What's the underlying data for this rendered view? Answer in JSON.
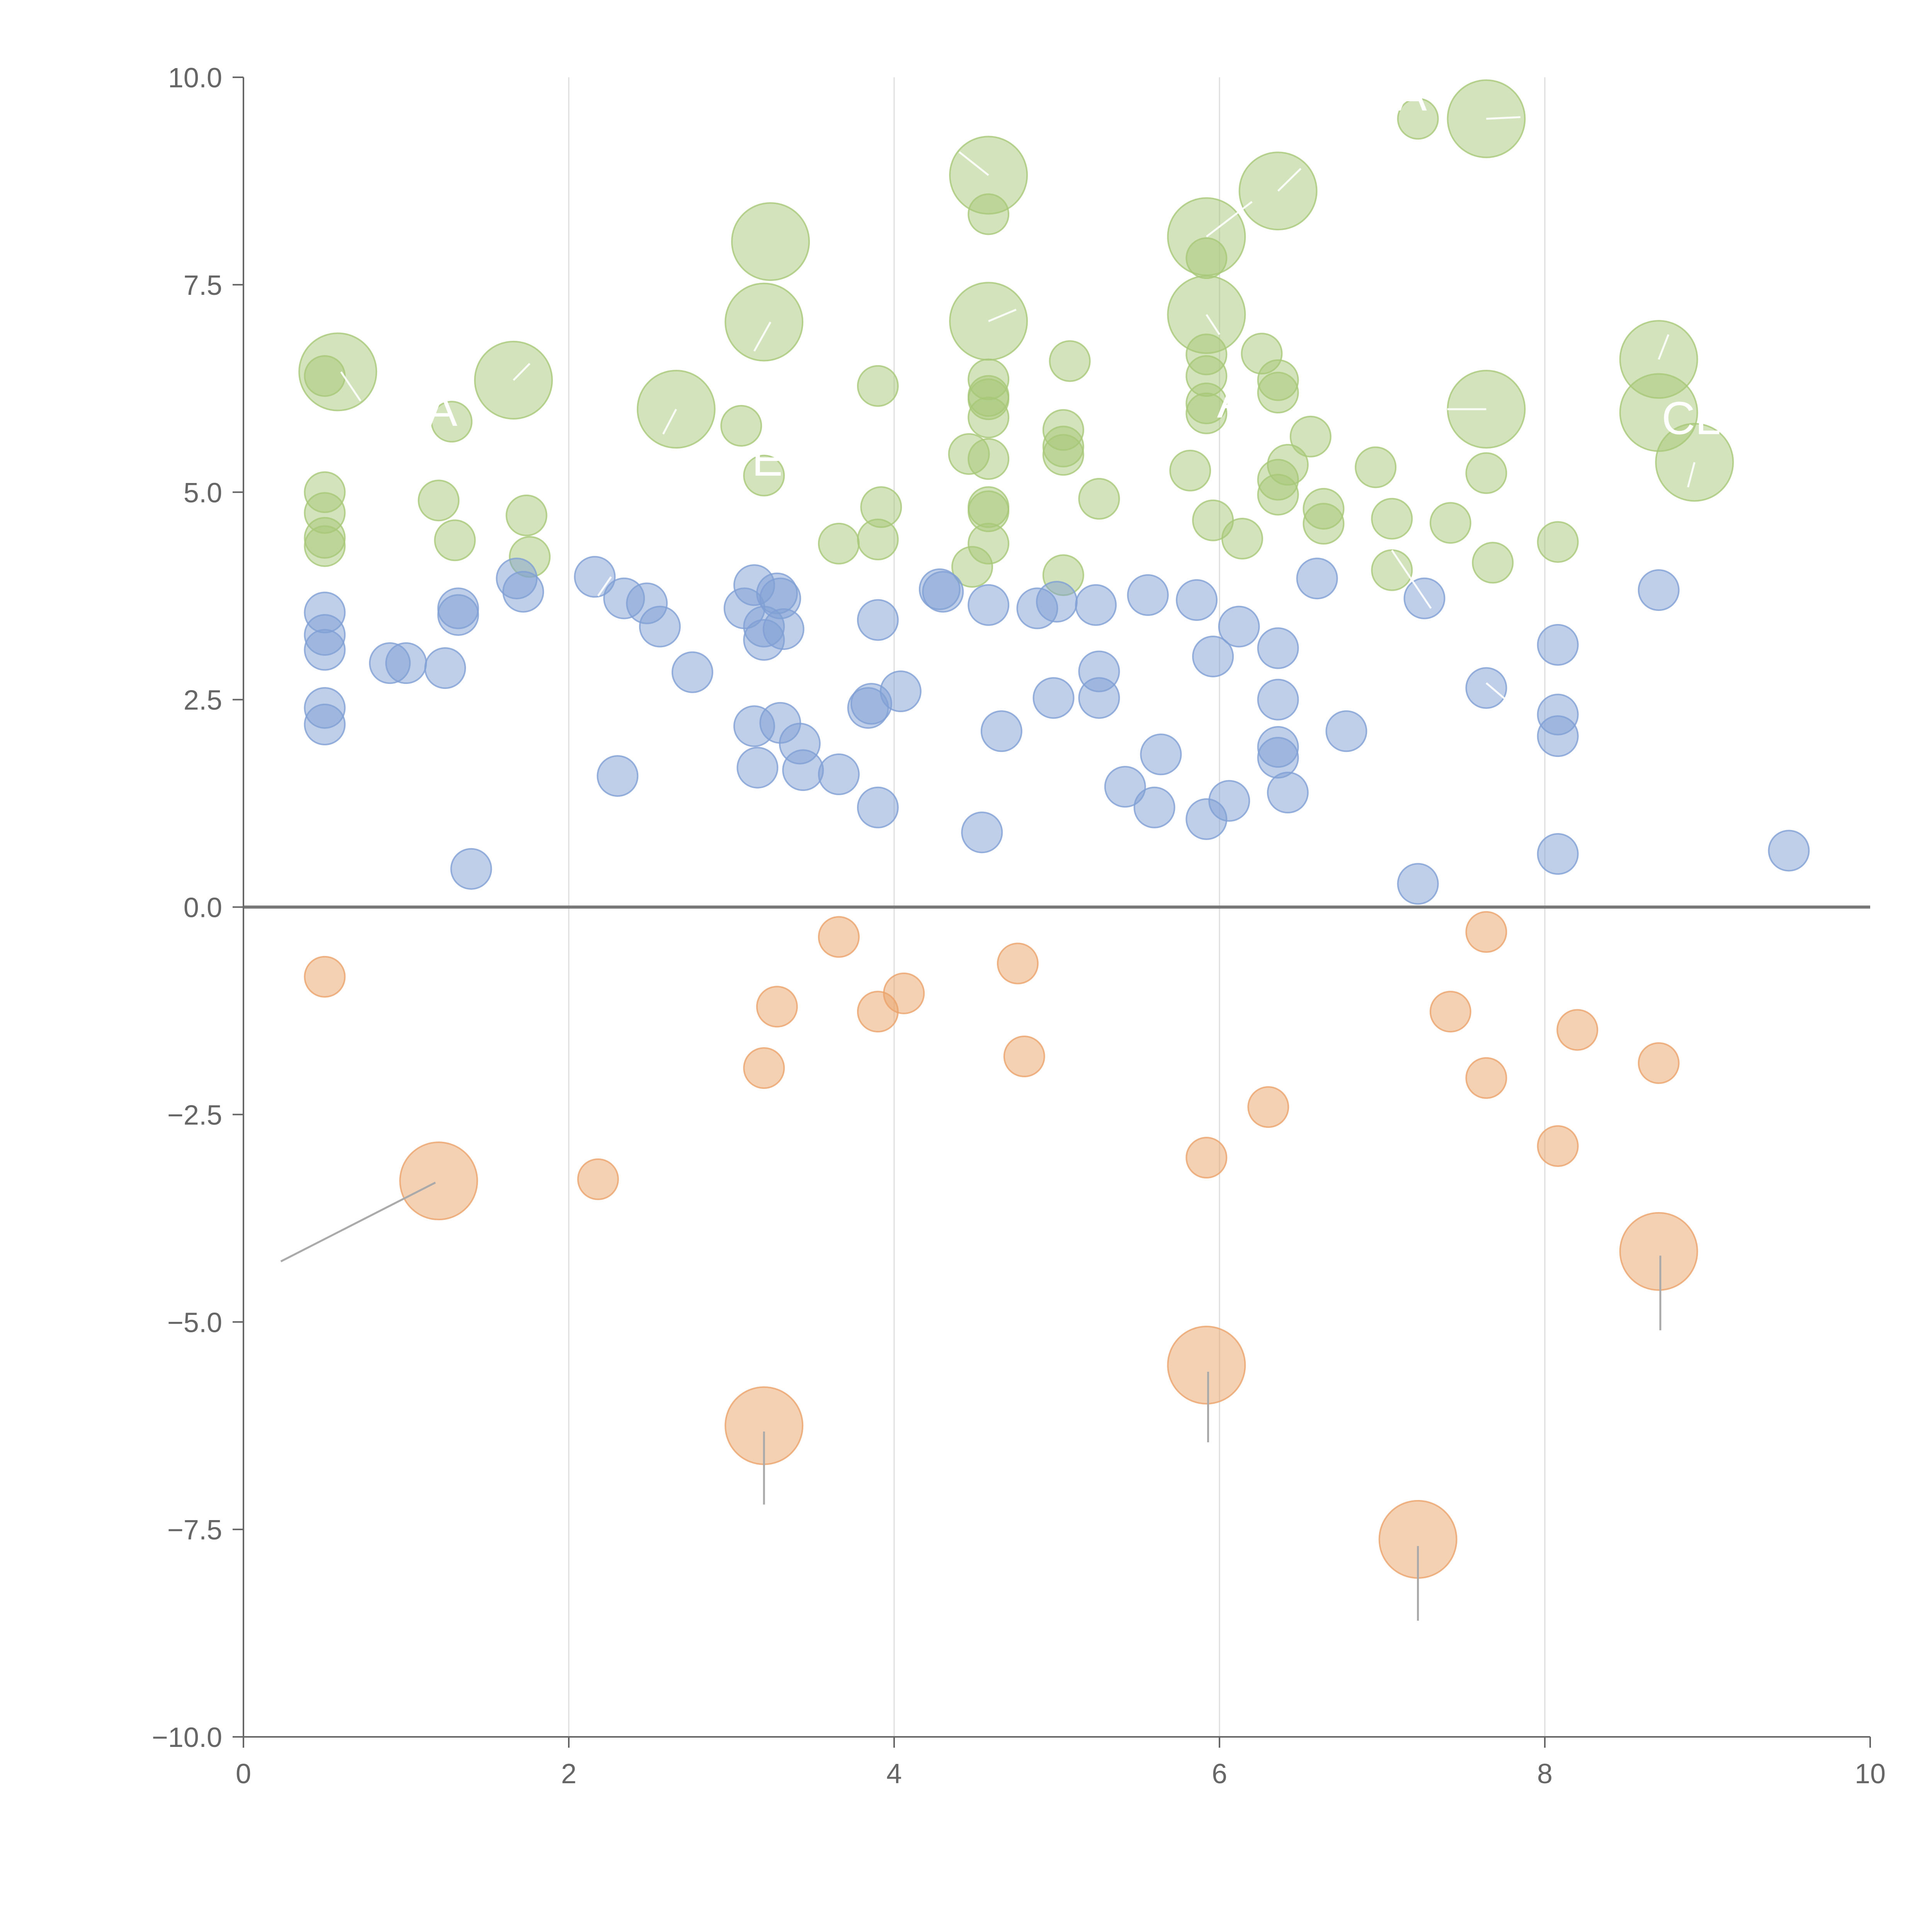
{
  "colors": {
    "green": "#a7c878",
    "blue": "#7f9fd4",
    "orange": "#eba36a",
    "axis": "#666666",
    "grid": "#dddddd",
    "zero_line": "#777777"
  },
  "chart_data": {
    "type": "scatter",
    "title": "",
    "xlabel": "",
    "ylabel": "",
    "xlim": [
      0,
      10
    ],
    "ylim": [
      -10,
      10
    ],
    "x_ticks": [
      "0",
      "2",
      "4",
      "6",
      "8",
      "10"
    ],
    "y_ticks": [
      "10.0",
      "7.5",
      "5.0",
      "2.5",
      "0.0",
      "−2.5",
      "−5.0",
      "−7.5",
      "−10.0"
    ],
    "vertical_grid_at": [
      2,
      4,
      6,
      8
    ],
    "reference_line_y": 0,
    "series": [
      {
        "name": "green",
        "points": [
          {
            "x": 0.5,
            "y": 6.4,
            "size": 1
          },
          {
            "x": 0.5,
            "y": 5.0,
            "size": 1
          },
          {
            "x": 0.5,
            "y": 4.75,
            "size": 1
          },
          {
            "x": 0.5,
            "y": 4.45,
            "size": 1
          },
          {
            "x": 0.5,
            "y": 4.35,
            "size": 1
          },
          {
            "x": 0.58,
            "y": 6.45,
            "size": 3
          },
          {
            "x": 1.2,
            "y": 4.9,
            "size": 1
          },
          {
            "x": 1.28,
            "y": 5.85,
            "size": 1
          },
          {
            "x": 1.3,
            "y": 4.42,
            "size": 1
          },
          {
            "x": 1.66,
            "y": 6.35,
            "size": 3
          },
          {
            "x": 1.74,
            "y": 4.72,
            "size": 1
          },
          {
            "x": 1.76,
            "y": 4.22,
            "size": 1
          },
          {
            "x": 2.66,
            "y": 6.0,
            "size": 3
          },
          {
            "x": 3.06,
            "y": 5.8,
            "size": 1
          },
          {
            "x": 3.2,
            "y": 5.2,
            "size": 1
          },
          {
            "x": 3.24,
            "y": 8.02,
            "size": 3
          },
          {
            "x": 3.2,
            "y": 7.05,
            "size": 3
          },
          {
            "x": 3.66,
            "y": 4.38,
            "size": 1
          },
          {
            "x": 3.9,
            "y": 6.28,
            "size": 1
          },
          {
            "x": 3.9,
            "y": 4.43,
            "size": 1
          },
          {
            "x": 3.92,
            "y": 4.82,
            "size": 1
          },
          {
            "x": 4.46,
            "y": 5.46,
            "size": 1
          },
          {
            "x": 4.48,
            "y": 4.1,
            "size": 1
          },
          {
            "x": 4.58,
            "y": 8.82,
            "size": 3
          },
          {
            "x": 4.58,
            "y": 7.06,
            "size": 3
          },
          {
            "x": 4.58,
            "y": 8.35,
            "size": 1
          },
          {
            "x": 4.58,
            "y": 6.36,
            "size": 1
          },
          {
            "x": 4.58,
            "y": 6.16,
            "size": 1
          },
          {
            "x": 4.58,
            "y": 6.12,
            "size": 1
          },
          {
            "x": 4.58,
            "y": 5.9,
            "size": 1
          },
          {
            "x": 4.58,
            "y": 5.4,
            "size": 1
          },
          {
            "x": 4.58,
            "y": 4.82,
            "size": 1
          },
          {
            "x": 4.58,
            "y": 4.77,
            "size": 1
          },
          {
            "x": 4.58,
            "y": 4.38,
            "size": 1
          },
          {
            "x": 5.04,
            "y": 5.75,
            "size": 1
          },
          {
            "x": 5.04,
            "y": 5.55,
            "size": 1
          },
          {
            "x": 5.04,
            "y": 5.45,
            "size": 1
          },
          {
            "x": 5.04,
            "y": 4.0,
            "size": 1
          },
          {
            "x": 5.08,
            "y": 6.58,
            "size": 1
          },
          {
            "x": 5.26,
            "y": 4.92,
            "size": 1
          },
          {
            "x": 5.82,
            "y": 5.26,
            "size": 1
          },
          {
            "x": 5.92,
            "y": 8.08,
            "size": 3
          },
          {
            "x": 5.92,
            "y": 7.14,
            "size": 3
          },
          {
            "x": 5.92,
            "y": 7.82,
            "size": 1
          },
          {
            "x": 5.92,
            "y": 6.66,
            "size": 1
          },
          {
            "x": 5.92,
            "y": 6.4,
            "size": 1
          },
          {
            "x": 5.92,
            "y": 6.07,
            "size": 1
          },
          {
            "x": 5.92,
            "y": 5.95,
            "size": 1
          },
          {
            "x": 5.96,
            "y": 4.66,
            "size": 1
          },
          {
            "x": 6.14,
            "y": 4.44,
            "size": 1
          },
          {
            "x": 6.26,
            "y": 6.67,
            "size": 1
          },
          {
            "x": 6.36,
            "y": 8.63,
            "size": 3
          },
          {
            "x": 6.36,
            "y": 6.35,
            "size": 1
          },
          {
            "x": 6.36,
            "y": 6.2,
            "size": 1
          },
          {
            "x": 6.36,
            "y": 5.15,
            "size": 1
          },
          {
            "x": 6.36,
            "y": 4.97,
            "size": 1
          },
          {
            "x": 6.42,
            "y": 5.33,
            "size": 1
          },
          {
            "x": 6.56,
            "y": 5.67,
            "size": 1
          },
          {
            "x": 6.64,
            "y": 4.8,
            "size": 1
          },
          {
            "x": 6.64,
            "y": 4.62,
            "size": 1
          },
          {
            "x": 6.96,
            "y": 5.3,
            "size": 1
          },
          {
            "x": 7.06,
            "y": 4.68,
            "size": 1
          },
          {
            "x": 7.06,
            "y": 4.06,
            "size": 1
          },
          {
            "x": 7.22,
            "y": 9.5,
            "size": 1
          },
          {
            "x": 7.42,
            "y": 4.63,
            "size": 1
          },
          {
            "x": 7.64,
            "y": 9.5,
            "size": 3
          },
          {
            "x": 7.64,
            "y": 6.0,
            "size": 3
          },
          {
            "x": 7.64,
            "y": 5.23,
            "size": 1
          },
          {
            "x": 7.68,
            "y": 4.15,
            "size": 1
          },
          {
            "x": 8.08,
            "y": 4.4,
            "size": 1
          },
          {
            "x": 8.7,
            "y": 6.6,
            "size": 3
          },
          {
            "x": 8.7,
            "y": 5.96,
            "size": 3
          },
          {
            "x": 8.92,
            "y": 5.36,
            "size": 3
          }
        ]
      },
      {
        "name": "blue",
        "points": [
          {
            "x": 0.5,
            "y": 3.55,
            "size": 1
          },
          {
            "x": 0.5,
            "y": 3.28,
            "size": 1
          },
          {
            "x": 0.5,
            "y": 3.1,
            "size": 1
          },
          {
            "x": 0.5,
            "y": 2.4,
            "size": 1
          },
          {
            "x": 0.5,
            "y": 2.2,
            "size": 1
          },
          {
            "x": 0.9,
            "y": 2.94,
            "size": 1
          },
          {
            "x": 1.0,
            "y": 2.94,
            "size": 1
          },
          {
            "x": 1.24,
            "y": 2.88,
            "size": 1
          },
          {
            "x": 1.32,
            "y": 3.52,
            "size": 1
          },
          {
            "x": 1.32,
            "y": 3.6,
            "size": 1
          },
          {
            "x": 1.4,
            "y": 0.46,
            "size": 1
          },
          {
            "x": 1.68,
            "y": 3.96,
            "size": 1
          },
          {
            "x": 1.72,
            "y": 3.8,
            "size": 1
          },
          {
            "x": 2.16,
            "y": 3.98,
            "size": 1
          },
          {
            "x": 2.3,
            "y": 1.58,
            "size": 1
          },
          {
            "x": 2.34,
            "y": 3.72,
            "size": 1
          },
          {
            "x": 2.48,
            "y": 3.66,
            "size": 1
          },
          {
            "x": 2.56,
            "y": 3.38,
            "size": 1
          },
          {
            "x": 2.76,
            "y": 2.83,
            "size": 1
          },
          {
            "x": 3.08,
            "y": 3.6,
            "size": 1
          },
          {
            "x": 3.14,
            "y": 3.88,
            "size": 1
          },
          {
            "x": 3.14,
            "y": 2.18,
            "size": 1
          },
          {
            "x": 3.16,
            "y": 1.68,
            "size": 1
          },
          {
            "x": 3.2,
            "y": 3.38,
            "size": 1
          },
          {
            "x": 3.2,
            "y": 3.22,
            "size": 1
          },
          {
            "x": 3.28,
            "y": 3.78,
            "size": 1
          },
          {
            "x": 3.3,
            "y": 3.72,
            "size": 1
          },
          {
            "x": 3.32,
            "y": 3.35,
            "size": 1
          },
          {
            "x": 3.3,
            "y": 2.22,
            "size": 1
          },
          {
            "x": 3.42,
            "y": 1.97,
            "size": 1
          },
          {
            "x": 3.44,
            "y": 1.65,
            "size": 1
          },
          {
            "x": 3.66,
            "y": 1.6,
            "size": 1
          },
          {
            "x": 3.84,
            "y": 2.4,
            "size": 1
          },
          {
            "x": 3.86,
            "y": 2.45,
            "size": 1
          },
          {
            "x": 3.9,
            "y": 3.46,
            "size": 1
          },
          {
            "x": 3.9,
            "y": 1.2,
            "size": 1
          },
          {
            "x": 4.04,
            "y": 2.6,
            "size": 1
          },
          {
            "x": 4.28,
            "y": 3.83,
            "size": 1
          },
          {
            "x": 4.3,
            "y": 3.8,
            "size": 1
          },
          {
            "x": 4.54,
            "y": 0.9,
            "size": 1
          },
          {
            "x": 4.58,
            "y": 3.64,
            "size": 1
          },
          {
            "x": 4.66,
            "y": 2.12,
            "size": 1
          },
          {
            "x": 4.88,
            "y": 3.6,
            "size": 1
          },
          {
            "x": 4.98,
            "y": 2.52,
            "size": 1
          },
          {
            "x": 5.0,
            "y": 3.68,
            "size": 1
          },
          {
            "x": 5.24,
            "y": 3.64,
            "size": 1
          },
          {
            "x": 5.26,
            "y": 2.84,
            "size": 1
          },
          {
            "x": 5.26,
            "y": 2.52,
            "size": 1
          },
          {
            "x": 5.42,
            "y": 1.45,
            "size": 1
          },
          {
            "x": 5.56,
            "y": 3.76,
            "size": 1
          },
          {
            "x": 5.6,
            "y": 1.2,
            "size": 1
          },
          {
            "x": 5.64,
            "y": 1.84,
            "size": 1
          },
          {
            "x": 5.86,
            "y": 3.7,
            "size": 1
          },
          {
            "x": 5.92,
            "y": 1.06,
            "size": 1
          },
          {
            "x": 5.96,
            "y": 3.02,
            "size": 1
          },
          {
            "x": 6.06,
            "y": 1.28,
            "size": 1
          },
          {
            "x": 6.12,
            "y": 3.38,
            "size": 1
          },
          {
            "x": 6.36,
            "y": 3.12,
            "size": 1
          },
          {
            "x": 6.36,
            "y": 2.5,
            "size": 1
          },
          {
            "x": 6.36,
            "y": 1.93,
            "size": 1
          },
          {
            "x": 6.36,
            "y": 1.8,
            "size": 1
          },
          {
            "x": 6.42,
            "y": 1.38,
            "size": 1
          },
          {
            "x": 6.6,
            "y": 3.96,
            "size": 1
          },
          {
            "x": 6.78,
            "y": 2.12,
            "size": 1
          },
          {
            "x": 7.22,
            "y": 0.28,
            "size": 1
          },
          {
            "x": 7.26,
            "y": 3.72,
            "size": 1
          },
          {
            "x": 7.64,
            "y": 2.64,
            "size": 1
          },
          {
            "x": 8.08,
            "y": 3.16,
            "size": 1
          },
          {
            "x": 8.08,
            "y": 2.32,
            "size": 1
          },
          {
            "x": 8.08,
            "y": 2.06,
            "size": 1
          },
          {
            "x": 8.08,
            "y": 0.64,
            "size": 1
          },
          {
            "x": 8.7,
            "y": 3.82,
            "size": 1
          },
          {
            "x": 9.5,
            "y": 0.68,
            "size": 1
          }
        ]
      },
      {
        "name": "orange",
        "points": [
          {
            "x": 0.5,
            "y": -0.84,
            "size": 1
          },
          {
            "x": 1.2,
            "y": -3.3,
            "size": 3
          },
          {
            "x": 2.18,
            "y": -3.28,
            "size": 1
          },
          {
            "x": 3.2,
            "y": -1.94,
            "size": 1
          },
          {
            "x": 3.28,
            "y": -1.2,
            "size": 1
          },
          {
            "x": 3.2,
            "y": -6.25,
            "size": 3
          },
          {
            "x": 3.66,
            "y": -0.36,
            "size": 1
          },
          {
            "x": 3.9,
            "y": -1.26,
            "size": 1
          },
          {
            "x": 4.06,
            "y": -1.04,
            "size": 1
          },
          {
            "x": 4.76,
            "y": -0.68,
            "size": 1
          },
          {
            "x": 4.8,
            "y": -1.8,
            "size": 1
          },
          {
            "x": 5.92,
            "y": -3.02,
            "size": 1
          },
          {
            "x": 5.92,
            "y": -5.52,
            "size": 3
          },
          {
            "x": 6.3,
            "y": -2.41,
            "size": 1
          },
          {
            "x": 7.22,
            "y": -7.62,
            "size": 3
          },
          {
            "x": 7.42,
            "y": -1.26,
            "size": 1
          },
          {
            "x": 7.64,
            "y": -0.3,
            "size": 1
          },
          {
            "x": 7.64,
            "y": -2.06,
            "size": 1
          },
          {
            "x": 8.08,
            "y": -2.88,
            "size": 1
          },
          {
            "x": 8.2,
            "y": -1.48,
            "size": 1
          },
          {
            "x": 8.7,
            "y": -1.88,
            "size": 1
          },
          {
            "x": 8.7,
            "y": -4.15,
            "size": 3
          }
        ]
      }
    ],
    "annotations": [
      {
        "text": "A",
        "x": 7.18,
        "y": 9.6
      },
      {
        "text": "CL",
        "x": 8.9,
        "y": 5.7
      },
      {
        "text": "A",
        "x": 6.08,
        "y": 5.9
      },
      {
        "text": "A",
        "x": 1.22,
        "y": 5.8
      },
      {
        "text": "E",
        "x": 3.22,
        "y": 5.2
      }
    ],
    "leaders": [
      {
        "x1": 1.18,
        "y1": -3.32,
        "x2": 0.23,
        "y2": -4.27,
        "color": "gray"
      },
      {
        "x1": 3.2,
        "y1": -6.32,
        "x2": 3.2,
        "y2": -7.2,
        "color": "gray"
      },
      {
        "x1": 5.93,
        "y1": -5.6,
        "x2": 5.93,
        "y2": -6.45,
        "color": "gray"
      },
      {
        "x1": 7.22,
        "y1": -7.7,
        "x2": 7.22,
        "y2": -8.6,
        "color": "gray"
      },
      {
        "x1": 8.71,
        "y1": -4.2,
        "x2": 8.71,
        "y2": -5.1,
        "color": "gray"
      },
      {
        "x1": 0.6,
        "y1": 6.45,
        "x2": 0.72,
        "y2": 6.1,
        "color": "white"
      },
      {
        "x1": 1.66,
        "y1": 6.35,
        "x2": 1.76,
        "y2": 6.55,
        "color": "white"
      },
      {
        "x1": 2.66,
        "y1": 6.0,
        "x2": 2.58,
        "y2": 5.7,
        "color": "white"
      },
      {
        "x1": 3.24,
        "y1": 7.05,
        "x2": 3.14,
        "y2": 6.7,
        "color": "white"
      },
      {
        "x1": 4.58,
        "y1": 8.82,
        "x2": 4.4,
        "y2": 9.1,
        "color": "white"
      },
      {
        "x1": 4.58,
        "y1": 7.06,
        "x2": 4.75,
        "y2": 7.2,
        "color": "white"
      },
      {
        "x1": 5.92,
        "y1": 8.08,
        "x2": 6.2,
        "y2": 8.5,
        "color": "white"
      },
      {
        "x1": 5.92,
        "y1": 7.14,
        "x2": 6.0,
        "y2": 6.9,
        "color": "white"
      },
      {
        "x1": 6.36,
        "y1": 8.63,
        "x2": 6.5,
        "y2": 8.9,
        "color": "white"
      },
      {
        "x1": 7.64,
        "y1": 9.5,
        "x2": 7.85,
        "y2": 9.52,
        "color": "white"
      },
      {
        "x1": 7.64,
        "y1": 6.0,
        "x2": 7.4,
        "y2": 6.0,
        "color": "white"
      },
      {
        "x1": 8.7,
        "y1": 6.6,
        "x2": 8.76,
        "y2": 6.9,
        "color": "white"
      },
      {
        "x1": 8.92,
        "y1": 5.36,
        "x2": 8.88,
        "y2": 5.06,
        "color": "white"
      },
      {
        "x1": 7.06,
        "y1": 4.3,
        "x2": 7.3,
        "y2": 3.6,
        "color": "white"
      },
      {
        "x1": 7.64,
        "y1": 2.7,
        "x2": 7.76,
        "y2": 2.5,
        "color": "white"
      },
      {
        "x1": 2.18,
        "y1": 3.75,
        "x2": 2.26,
        "y2": 3.98,
        "color": "white"
      }
    ]
  }
}
